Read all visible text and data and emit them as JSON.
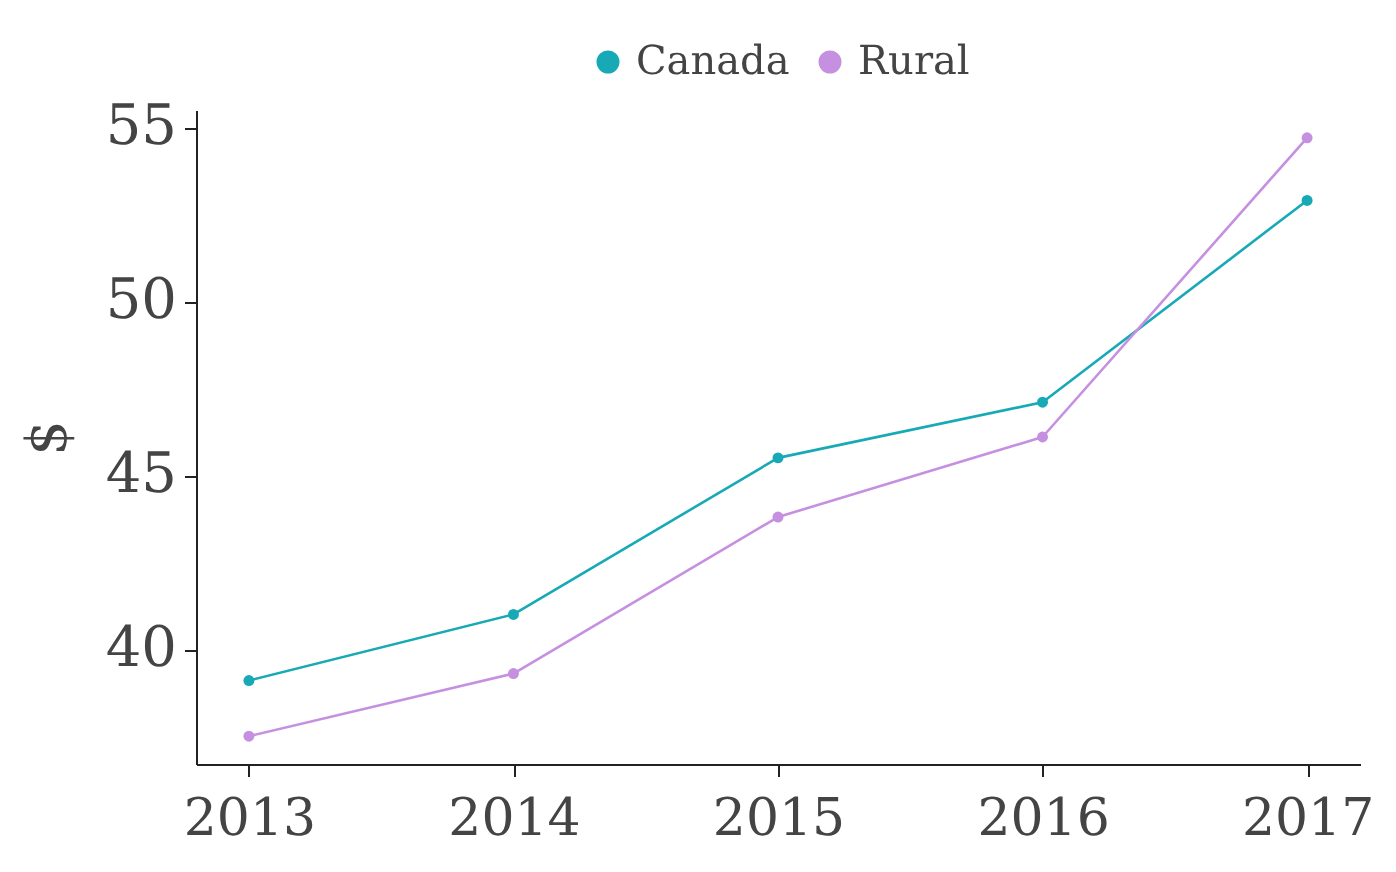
{
  "chart_data": {
    "type": "line",
    "ylabel": "$",
    "x": [
      2013,
      2014,
      2015,
      2016,
      2017
    ],
    "xlim": [
      2012.8,
      2017.2
    ],
    "xticks": [
      2013,
      2014,
      2015,
      2016,
      2017
    ],
    "ylim": [
      36.7,
      55.5
    ],
    "yticks": [
      40,
      45,
      50,
      55
    ],
    "series": [
      {
        "name": "Canada",
        "color": "#17a9b6",
        "values": [
          39.1,
          41.0,
          45.5,
          47.1,
          52.9
        ]
      },
      {
        "name": "Rural",
        "color": "#c690e0",
        "values": [
          37.5,
          39.3,
          43.8,
          46.1,
          54.7
        ]
      }
    ],
    "grid": false,
    "legend": "top",
    "marker": "circle",
    "line_style": "solid"
  }
}
